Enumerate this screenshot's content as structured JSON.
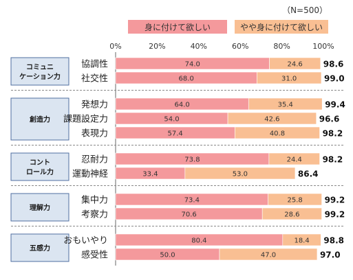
{
  "chart_data": {
    "type": "bar",
    "stacked": true,
    "orientation": "horizontal",
    "sample_note": "（N=500）",
    "legend": [
      {
        "name": "身に付けて欲しい",
        "color": "#f4999c"
      },
      {
        "name": "やや身に付けて欲しい",
        "color": "#f9bf93"
      }
    ],
    "x_ticks": [
      "0%",
      "20%",
      "40%",
      "60%",
      "80%",
      "100%"
    ],
    "xlim": [
      0,
      100
    ],
    "groups": [
      {
        "label_lines": [
          "コミュニ",
          "ケーション力"
        ],
        "items": [
          {
            "label": "協調性",
            "values": [
              74.0,
              24.6
            ],
            "value_labels": [
              "74.0",
              "24.6"
            ],
            "total": "98.6"
          },
          {
            "label": "社交性",
            "values": [
              68.0,
              31.0
            ],
            "value_labels": [
              "68.0",
              "31.0"
            ],
            "total": "99.0"
          }
        ]
      },
      {
        "label_lines": [
          "創造力"
        ],
        "items": [
          {
            "label": "発想力",
            "values": [
              64.0,
              35.4
            ],
            "value_labels": [
              "64.0",
              "35.4"
            ],
            "total": "99.4"
          },
          {
            "label": "課題設定力",
            "values": [
              54.0,
              42.6
            ],
            "value_labels": [
              "54.0",
              "42.6"
            ],
            "total": "96.6"
          },
          {
            "label": "表現力",
            "values": [
              57.4,
              40.8
            ],
            "value_labels": [
              "57.4",
              "40.8"
            ],
            "total": "98.2"
          }
        ]
      },
      {
        "label_lines": [
          "コント",
          "ロール力"
        ],
        "items": [
          {
            "label": "忍耐力",
            "values": [
              73.8,
              24.4
            ],
            "value_labels": [
              "73.8",
              "24.4"
            ],
            "total": "98.2"
          },
          {
            "label": "運動神経",
            "values": [
              33.4,
              53.0
            ],
            "value_labels": [
              "33.4",
              "53.0"
            ],
            "total": "86.4"
          }
        ]
      },
      {
        "label_lines": [
          "理解力"
        ],
        "items": [
          {
            "label": "集中力",
            "values": [
              73.4,
              25.8
            ],
            "value_labels": [
              "73.4",
              "25.8"
            ],
            "total": "99.2"
          },
          {
            "label": "考察力",
            "values": [
              70.6,
              28.6
            ],
            "value_labels": [
              "70.6",
              "28.6"
            ],
            "total": "99.2"
          }
        ]
      },
      {
        "label_lines": [
          "五感力"
        ],
        "items": [
          {
            "label": "おもいやり",
            "values": [
              80.4,
              18.4
            ],
            "value_labels": [
              "80.4",
              "18.4"
            ],
            "total": "98.8"
          },
          {
            "label": "感受性",
            "values": [
              50.0,
              47.0
            ],
            "value_labels": [
              "50.0",
              "47.0"
            ],
            "total": "97.0"
          }
        ]
      }
    ],
    "colors": {
      "group_box_fill": "#dbe5f1",
      "group_box_stroke": "#4f6ea0",
      "divider": "#888888"
    }
  }
}
